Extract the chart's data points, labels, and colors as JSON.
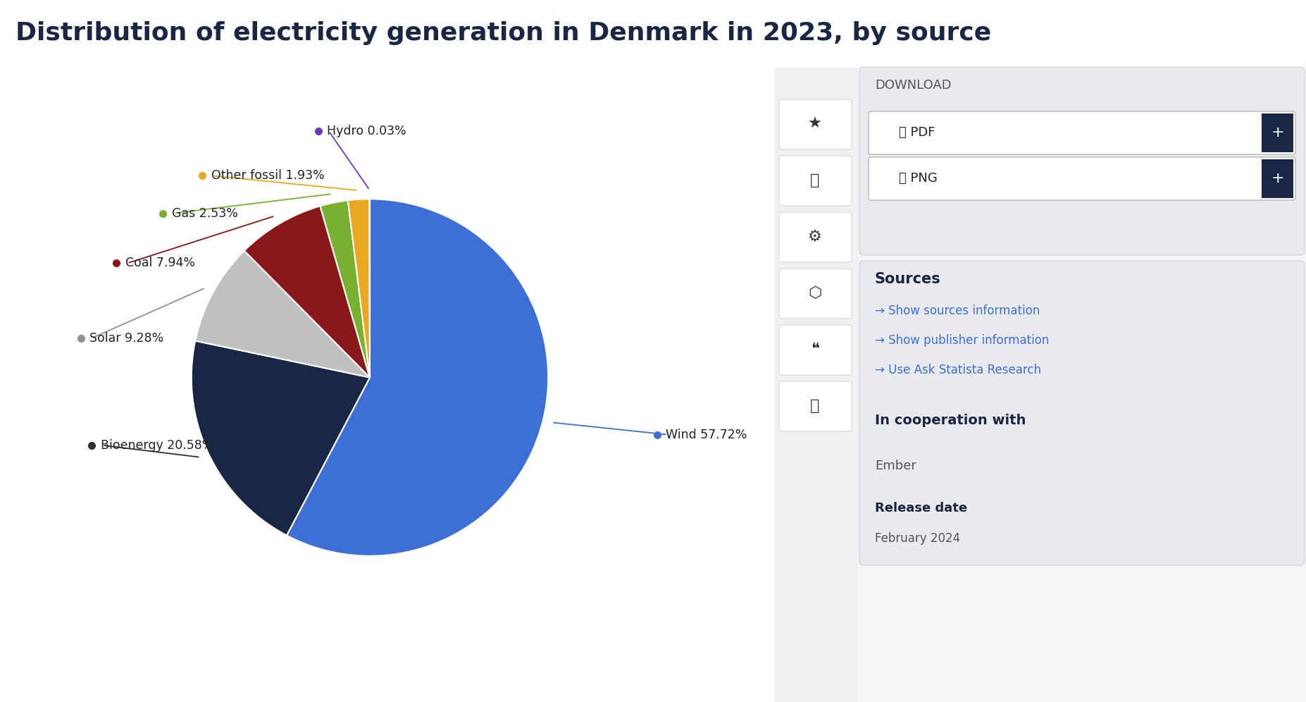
{
  "title": "Distribution of electricity generation in Denmark in 2023, by source",
  "title_color": "#1a2744",
  "title_fontsize": 26,
  "background_color": "#ffffff",
  "slices": [
    {
      "label": "Wind",
      "value": 57.72,
      "color": "#3d6fd4"
    },
    {
      "label": "Bioenergy",
      "value": 20.58,
      "color": "#1a2744"
    },
    {
      "label": "Solar",
      "value": 9.28,
      "color": "#c0c0c0"
    },
    {
      "label": "Coal",
      "value": 7.94,
      "color": "#8b1818"
    },
    {
      "label": "Gas",
      "value": 2.53,
      "color": "#7ab030"
    },
    {
      "label": "Other fossil",
      "value": 1.93,
      "color": "#e8a820"
    },
    {
      "label": "Hydro",
      "value": 0.03,
      "color": "#6a3db8"
    }
  ],
  "label_colors": {
    "Wind": "#3d6fd4",
    "Bioenergy": "#303030",
    "Solar": "#909090",
    "Coal": "#8b1818",
    "Gas": "#7ab030",
    "Other fossil": "#e8a820",
    "Hydro": "#6a3db8"
  },
  "sidebar_bg": "#f0f2f5",
  "sidebar_panel_bg": "#e8eaed",
  "download_bg": "#e8eaed",
  "divider_color": "#cccccc",
  "icon_color": "#333333",
  "sources_title_color": "#1a2744",
  "sources_link_color": "#3d6fd4",
  "text_dark": "#1a2744",
  "text_gray": "#555555",
  "arrow_color": "#3d6fd4"
}
